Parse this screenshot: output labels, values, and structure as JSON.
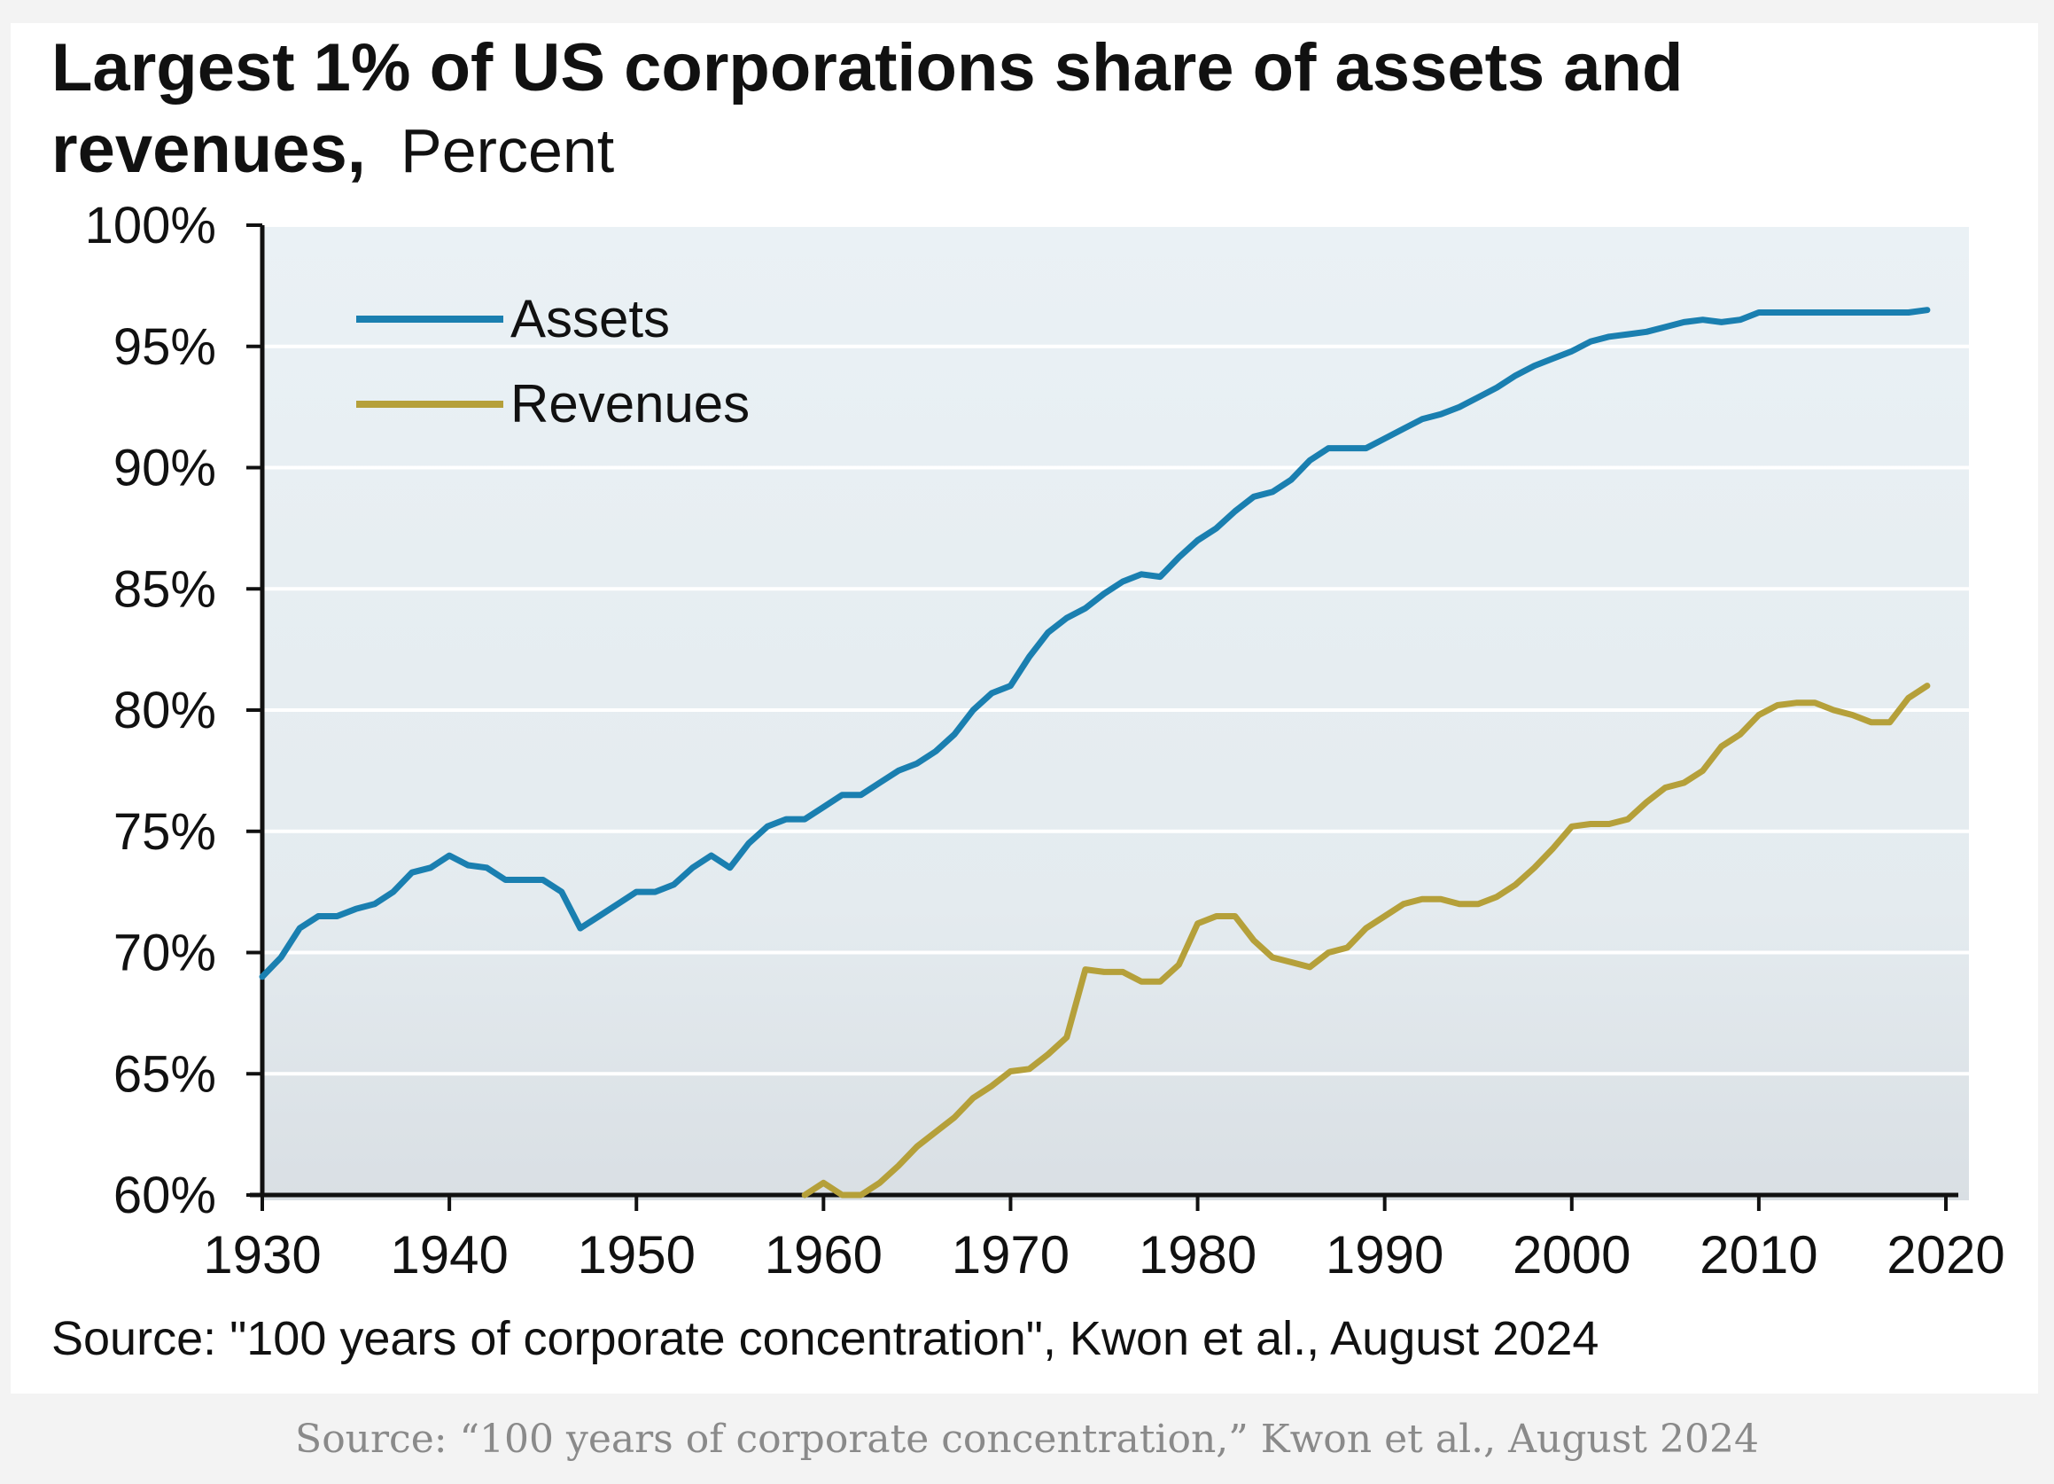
{
  "figure": {
    "title_bold_line1": "Largest 1% of US corporations share of assets and",
    "title_bold_line2": "revenues,",
    "title_unit": "Percent",
    "source": "Source: \"100 years of corporate concentration\", Kwon et al., August 2024"
  },
  "caption": "Source: “100 years of corporate concentration,” Kwon et al., August 2024",
  "chart_data": {
    "type": "line",
    "title": "Largest 1% of US corporations share of assets and revenues, Percent",
    "xlabel": "",
    "ylabel": "",
    "xlim": [
      1930,
      2020
    ],
    "ylim": [
      60,
      100
    ],
    "x_ticks": [
      1930,
      1940,
      1950,
      1960,
      1970,
      1980,
      1990,
      2000,
      2010,
      2020
    ],
    "x_tick_labels": [
      "1930",
      "1940",
      "1950",
      "1960",
      "1970",
      "1980",
      "1990",
      "2000",
      "2010",
      "2020"
    ],
    "y_ticks": [
      60,
      65,
      70,
      75,
      80,
      85,
      90,
      95,
      100
    ],
    "y_tick_labels": [
      "60%",
      "65%",
      "70%",
      "75%",
      "80%",
      "85%",
      "90%",
      "95%",
      "100%"
    ],
    "grid": "horizontal",
    "legend_position": "top-left",
    "background": "#e8eef2",
    "series": [
      {
        "name": "Assets",
        "color": "#1a7fb0",
        "x": [
          1930,
          1931,
          1932,
          1933,
          1934,
          1935,
          1936,
          1937,
          1938,
          1939,
          1940,
          1941,
          1942,
          1943,
          1944,
          1945,
          1946,
          1947,
          1948,
          1949,
          1950,
          1951,
          1952,
          1953,
          1954,
          1955,
          1956,
          1957,
          1958,
          1959,
          1960,
          1961,
          1962,
          1963,
          1964,
          1965,
          1966,
          1967,
          1968,
          1969,
          1970,
          1971,
          1972,
          1973,
          1974,
          1975,
          1976,
          1977,
          1978,
          1979,
          1980,
          1981,
          1982,
          1983,
          1984,
          1985,
          1986,
          1987,
          1988,
          1989,
          1990,
          1991,
          1992,
          1993,
          1994,
          1995,
          1996,
          1997,
          1998,
          1999,
          2000,
          2001,
          2002,
          2003,
          2004,
          2005,
          2006,
          2007,
          2008,
          2009,
          2010,
          2011,
          2012,
          2013,
          2014,
          2015,
          2016,
          2017,
          2018,
          2019
        ],
        "values": [
          69.0,
          69.8,
          71.0,
          71.5,
          71.5,
          71.8,
          72.0,
          72.5,
          73.3,
          73.5,
          74.0,
          73.6,
          73.5,
          73.0,
          73.0,
          73.0,
          72.5,
          71.0,
          71.5,
          72.0,
          72.5,
          72.5,
          72.8,
          73.5,
          74.0,
          73.5,
          74.5,
          75.2,
          75.5,
          75.5,
          76.0,
          76.5,
          76.5,
          77.0,
          77.5,
          77.8,
          78.3,
          79.0,
          80.0,
          80.7,
          81.0,
          82.2,
          83.2,
          83.8,
          84.2,
          84.8,
          85.3,
          85.6,
          85.5,
          86.3,
          87.0,
          87.5,
          88.2,
          88.8,
          89.0,
          89.5,
          90.3,
          90.8,
          90.8,
          90.8,
          91.2,
          91.6,
          92.0,
          92.2,
          92.5,
          92.9,
          93.3,
          93.8,
          94.2,
          94.5,
          94.8,
          95.2,
          95.4,
          95.5,
          95.6,
          95.8,
          96.0,
          96.1,
          96.0,
          96.1,
          96.4,
          96.4,
          96.4,
          96.4,
          96.4,
          96.4,
          96.4,
          96.4,
          96.4,
          96.5
        ]
      },
      {
        "name": "Revenues",
        "color": "#b5a03a",
        "x": [
          1959,
          1960,
          1961,
          1962,
          1963,
          1964,
          1965,
          1966,
          1967,
          1968,
          1969,
          1970,
          1971,
          1972,
          1973,
          1974,
          1975,
          1976,
          1977,
          1978,
          1979,
          1980,
          1981,
          1982,
          1983,
          1984,
          1985,
          1986,
          1987,
          1988,
          1989,
          1990,
          1991,
          1992,
          1993,
          1994,
          1995,
          1996,
          1997,
          1998,
          1999,
          2000,
          2001,
          2002,
          2003,
          2004,
          2005,
          2006,
          2007,
          2008,
          2009,
          2010,
          2011,
          2012,
          2013,
          2014,
          2015,
          2016,
          2017,
          2018,
          2019
        ],
        "values": [
          60.0,
          60.5,
          60.0,
          60.0,
          60.5,
          61.2,
          62.0,
          62.6,
          63.2,
          64.0,
          64.5,
          65.1,
          65.2,
          65.8,
          66.5,
          69.3,
          69.2,
          69.2,
          68.8,
          68.8,
          69.5,
          71.2,
          71.5,
          71.5,
          70.5,
          69.8,
          69.6,
          69.4,
          70.0,
          70.2,
          71.0,
          71.5,
          72.0,
          72.2,
          72.2,
          72.0,
          72.0,
          72.3,
          72.8,
          73.5,
          74.3,
          75.2,
          75.3,
          75.3,
          75.5,
          76.2,
          76.8,
          77.0,
          77.5,
          78.5,
          79.0,
          79.8,
          80.2,
          80.3,
          80.3,
          80.0,
          79.8,
          79.5,
          79.5,
          80.5,
          81.0
        ]
      }
    ]
  }
}
